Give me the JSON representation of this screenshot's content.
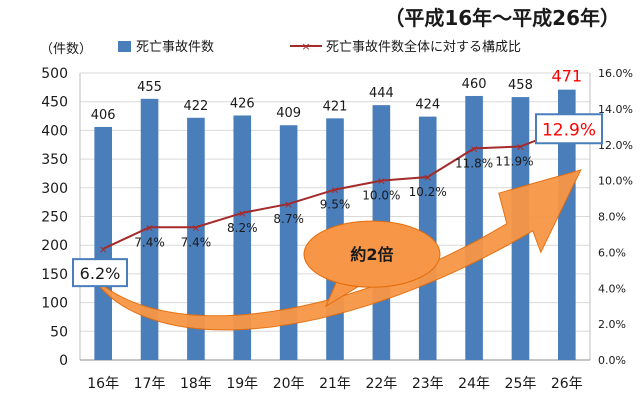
{
  "header": {
    "period": "（平成16年～平成26年）"
  },
  "chart_data": {
    "type": "bar",
    "categories": [
      "16年",
      "17年",
      "18年",
      "19年",
      "20年",
      "21年",
      "22年",
      "23年",
      "24年",
      "25年",
      "26年"
    ],
    "series": [
      {
        "name": "死亡事故件数",
        "type": "bar",
        "axis": "left",
        "values": [
          406,
          455,
          422,
          426,
          409,
          421,
          444,
          424,
          460,
          458,
          471
        ],
        "labels": [
          "406",
          "455",
          "422",
          "426",
          "409",
          "421",
          "444",
          "424",
          "460",
          "458",
          "471"
        ]
      },
      {
        "name": "死亡事故件数全体に対する構成比",
        "type": "line",
        "axis": "right",
        "values": [
          6.2,
          7.4,
          7.4,
          8.2,
          8.7,
          9.5,
          10.0,
          10.2,
          11.8,
          11.9,
          12.9
        ],
        "labels": [
          "6.2%",
          "7.4%",
          "7.4%",
          "8.2%",
          "8.7%",
          "9.5%",
          "10.0%",
          "10.2%",
          "11.8%",
          "11.9%",
          "12.9%"
        ]
      }
    ],
    "ylabel": "（件数）",
    "ylim": [
      0,
      500
    ],
    "yticks": [
      "0",
      "50",
      "100",
      "150",
      "200",
      "250",
      "300",
      "350",
      "400",
      "450",
      "500"
    ],
    "y2lim": [
      0,
      16
    ],
    "y2ticks": [
      "0.0%",
      "2.0%",
      "4.0%",
      "6.0%",
      "8.0%",
      "10.0%",
      "12.0%",
      "14.0%",
      "16.0%"
    ],
    "grid": true,
    "legend": "top",
    "callout": "約2倍",
    "colors": {
      "bar": "#4a7ebb",
      "line": "#a52a2a",
      "highlight": "#ff0000",
      "callout": "#f79646",
      "box_border": "#4a7ebb"
    }
  }
}
